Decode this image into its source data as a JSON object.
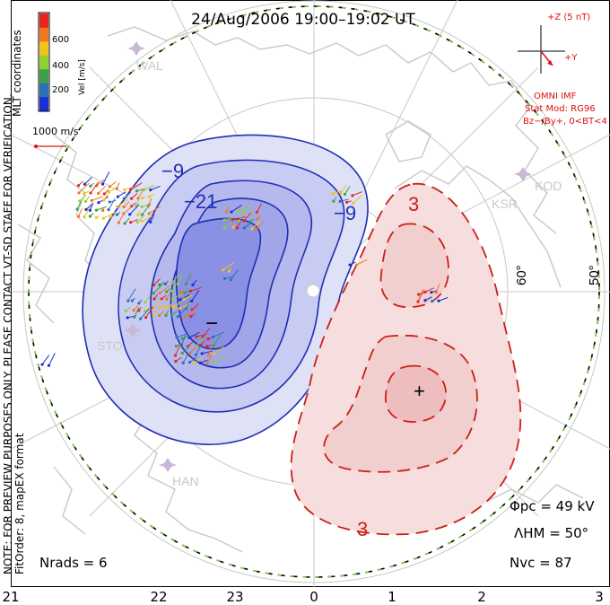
{
  "title": "24/Aug/2006  19:00–19:02  UT",
  "colorbar": {
    "ticks": [
      "600",
      "400",
      "200"
    ],
    "unit_label": "Vel [m/s]",
    "colors": [
      "#e8251c",
      "#f07820",
      "#f2c21e",
      "#8fd12e",
      "#3ca048",
      "#2e6fb8",
      "#1b2fd6"
    ]
  },
  "scale_label": "1000 m/s",
  "side_notes": {
    "mlt": "MLT coordinates",
    "preview": "NOTE: FOR PREVIEW PURPOSES ONLY. PLEASE CONTACT VT-SD STAFF FOR VERIFICATION.",
    "fitorder": "FitOrder: 8, mapEX format"
  },
  "imf": {
    "z_label": "+Z (5 nT)",
    "y_label": "+Y",
    "omni": "OMNI IMF",
    "stat_mod": "Stat Mod: RG96",
    "condition": "Bz−/By+, 0<BT<4"
  },
  "stations": [
    "WAL",
    "KSR",
    "KOD",
    "STO",
    "HAN"
  ],
  "lat_labels": [
    "60°",
    "50°"
  ],
  "contour_labels": {
    "neg": [
      "−9",
      "−21",
      "−9"
    ],
    "pos": [
      "3",
      "3"
    ]
  },
  "extrema": {
    "min": "−",
    "max": "+"
  },
  "stats": {
    "phi_pc": "Φpc = 49 kV",
    "lambda_hm": "ΛHM = 50°",
    "n_vc": "Nvc = 87",
    "n_rads": "Nrads = 6"
  },
  "mlt_axis": [
    "21",
    "22",
    "23",
    "0",
    "1",
    "2",
    "3"
  ],
  "colors": {
    "neg_contour": "#1e2fb5",
    "pos_contour": "#cc1f14",
    "annotation_red": "#e01010",
    "coast": "#c8c8c8"
  }
}
